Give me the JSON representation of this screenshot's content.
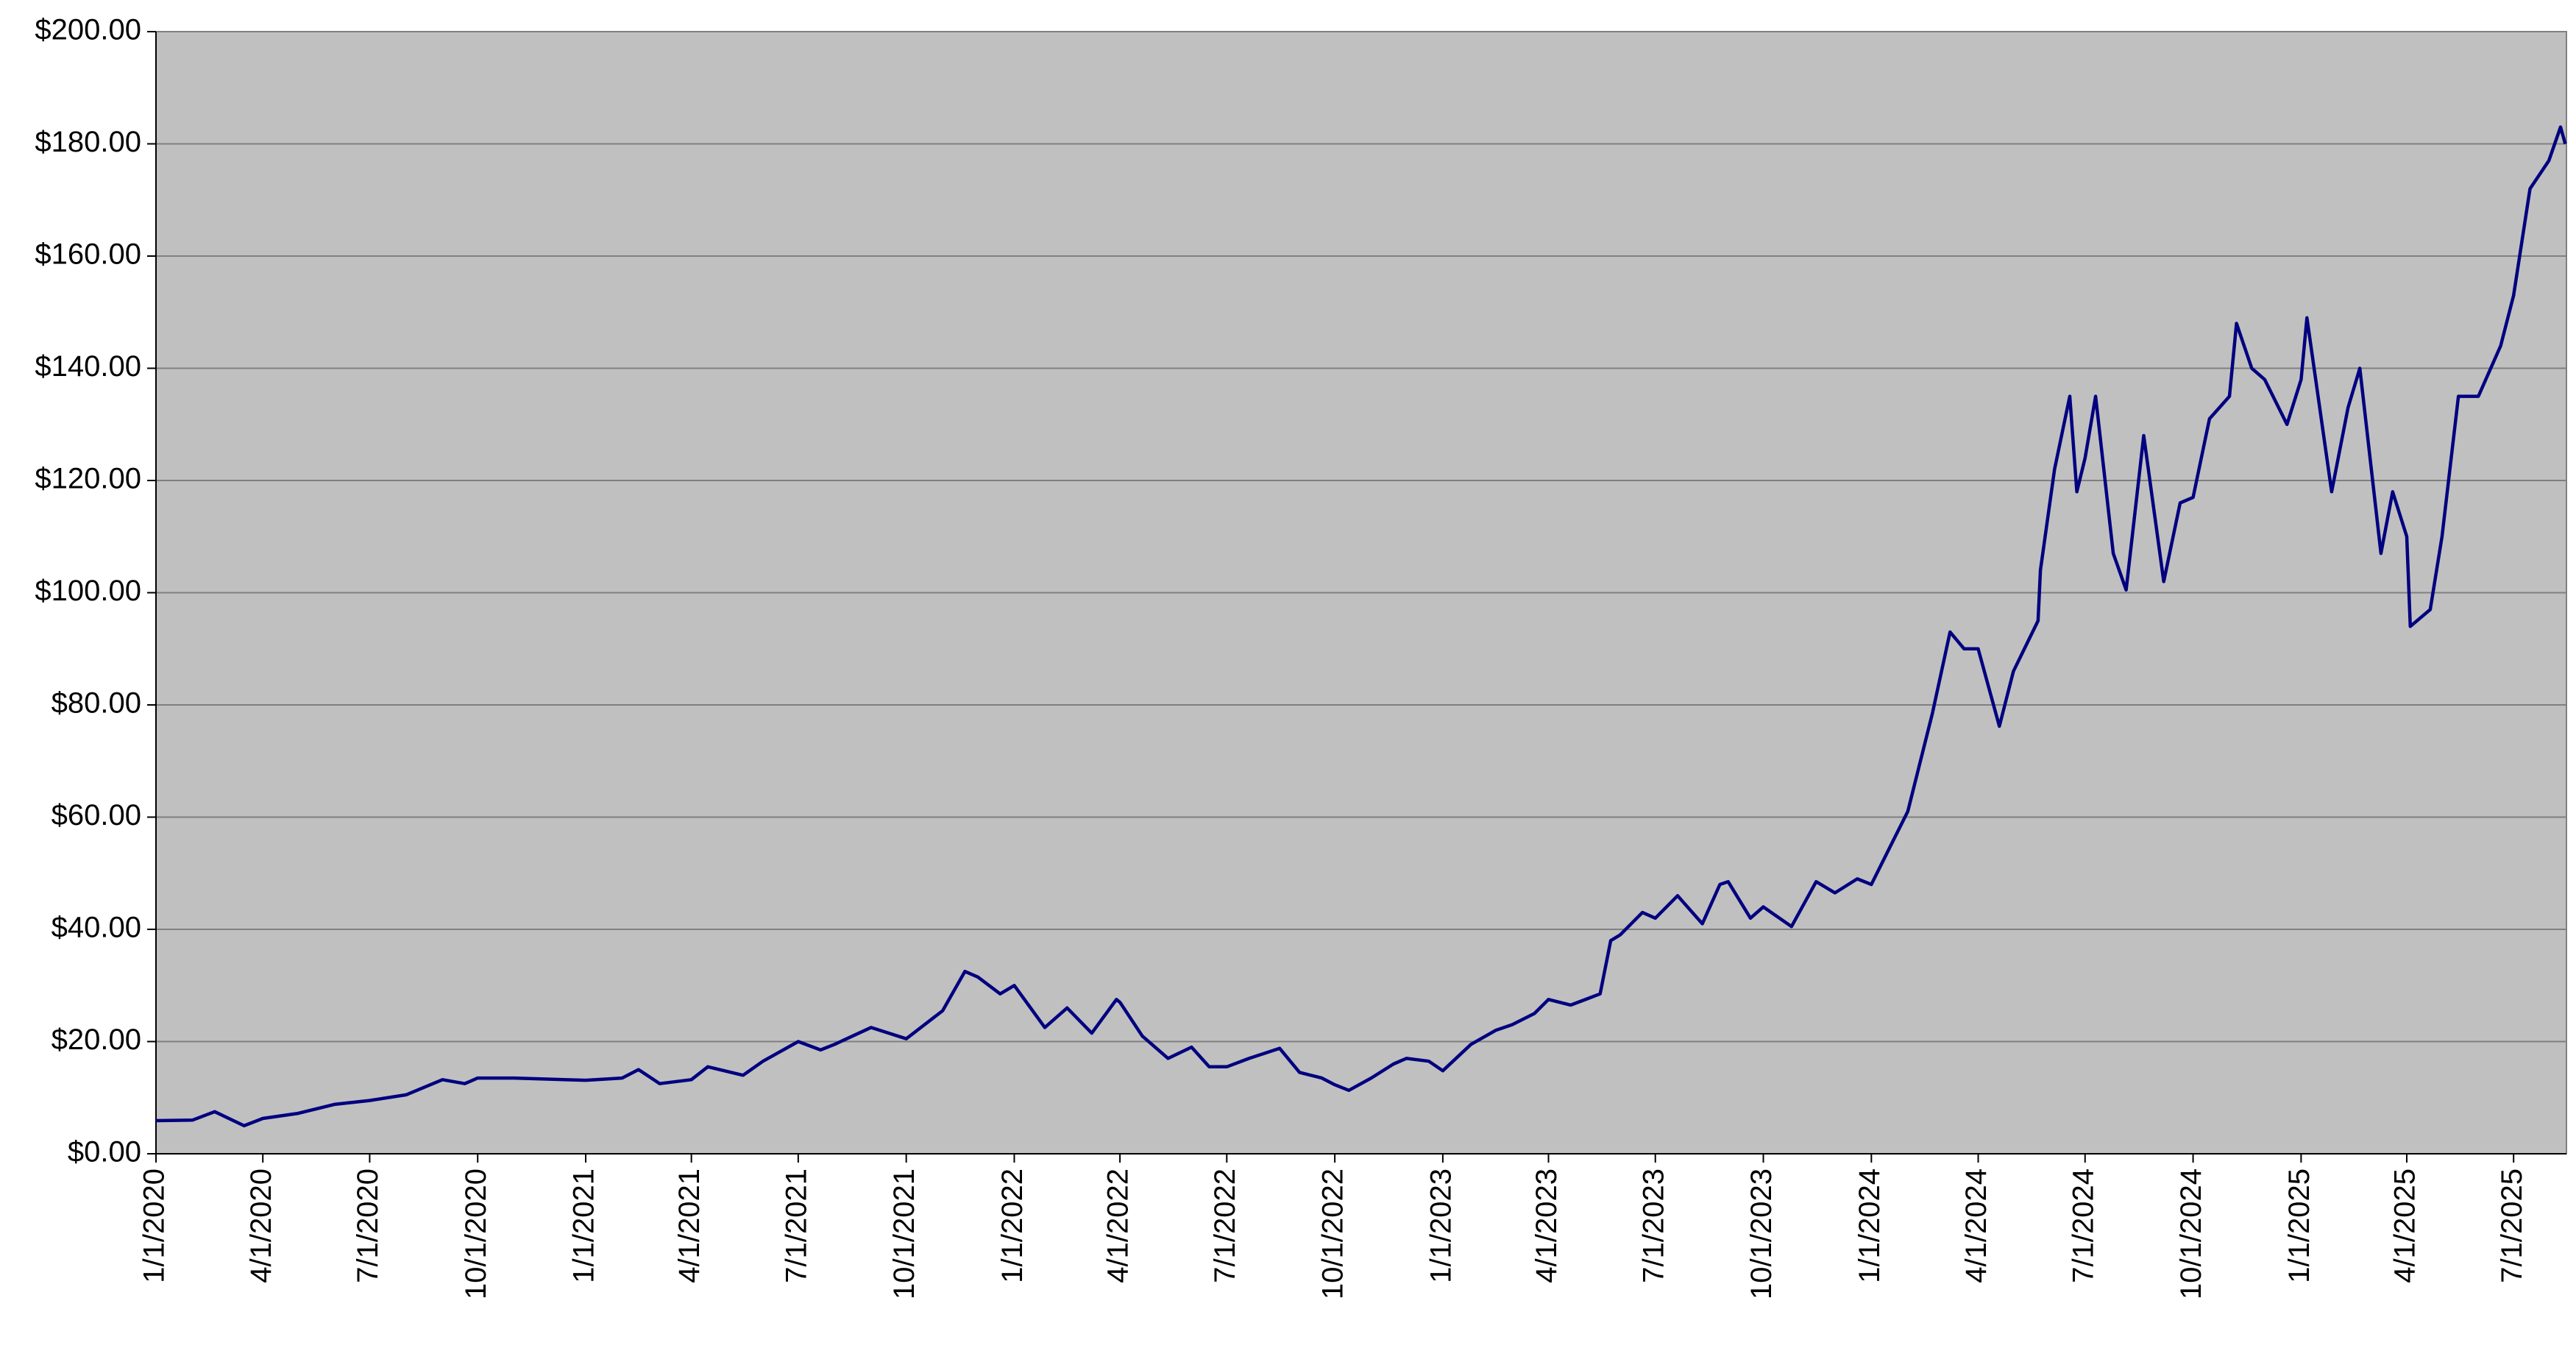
{
  "chart_data": {
    "type": "line",
    "color": "#000080",
    "background": "#c0c0c0",
    "grid": true,
    "xlim": [
      "1/1/2020",
      "8/15/2025"
    ],
    "xticks": [
      "1/1/2020",
      "4/1/2020",
      "7/1/2020",
      "10/1/2020",
      "1/1/2021",
      "4/1/2021",
      "7/1/2021",
      "10/1/2021",
      "1/1/2022",
      "4/1/2022",
      "7/1/2022",
      "10/1/2022",
      "1/1/2023",
      "4/1/2023",
      "7/1/2023",
      "10/1/2023",
      "1/1/2024",
      "4/1/2024",
      "7/1/2024",
      "10/1/2024",
      "1/1/2025",
      "4/1/2025",
      "7/1/2025"
    ],
    "ylim": [
      0,
      200
    ],
    "yticks": [
      {
        "value": 0,
        "label": "$0.00"
      },
      {
        "value": 20,
        "label": "$20.00"
      },
      {
        "value": 40,
        "label": "$40.00"
      },
      {
        "value": 60,
        "label": "$60.00"
      },
      {
        "value": 80,
        "label": "$80.00"
      },
      {
        "value": 100,
        "label": "$100.00"
      },
      {
        "value": 120,
        "label": "$120.00"
      },
      {
        "value": 140,
        "label": "$140.00"
      },
      {
        "value": 160,
        "label": "$160.00"
      },
      {
        "value": 180,
        "label": "$180.00"
      },
      {
        "value": 200,
        "label": "$200.00"
      }
    ],
    "x": [
      "1/1/2020",
      "2/1/2020",
      "2/20/2020",
      "3/16/2020",
      "4/1/2020",
      "5/1/2020",
      "6/1/2020",
      "7/1/2020",
      "8/1/2020",
      "9/1/2020",
      "9/20/2020",
      "10/1/2020",
      "11/1/2020",
      "12/1/2020",
      "1/1/2021",
      "2/1/2021",
      "2/15/2021",
      "3/5/2021",
      "4/1/2021",
      "4/15/2021",
      "5/15/2021",
      "6/1/2021",
      "7/1/2021",
      "7/20/2021",
      "8/1/2021",
      "9/1/2021",
      "10/1/2021",
      "11/1/2021",
      "11/20/2021",
      "12/1/2021",
      "12/20/2021",
      "1/1/2022",
      "1/27/2022",
      "2/15/2022",
      "3/8/2022",
      "3/29/2022",
      "4/1/2022",
      "4/20/2022",
      "5/12/2022",
      "6/1/2022",
      "6/16/2022",
      "7/1/2022",
      "7/20/2022",
      "8/15/2022",
      "9/1/2022",
      "9/20/2022",
      "10/1/2022",
      "10/13/2022",
      "11/1/2022",
      "11/20/2022",
      "12/1/2022",
      "12/20/2022",
      "1/1/2023",
      "1/25/2023",
      "2/15/2023",
      "3/1/2023",
      "3/20/2023",
      "4/1/2023",
      "4/20/2023",
      "5/15/2023",
      "5/24/2023",
      "6/1/2023",
      "6/20/2023",
      "7/1/2023",
      "7/20/2023",
      "8/10/2023",
      "8/25/2023",
      "9/1/2023",
      "9/20/2023",
      "10/1/2023",
      "10/25/2023",
      "11/15/2023",
      "12/1/2023",
      "12/20/2023",
      "1/1/2024",
      "1/20/2024",
      "2/1/2024",
      "2/22/2024",
      "3/8/2024",
      "3/20/2024",
      "4/1/2024",
      "4/19/2024",
      "5/1/2024",
      "5/22/2024",
      "5/24/2024",
      "6/5/2024",
      "6/18/2024",
      "6/24/2024",
      "7/1/2024",
      "7/10/2024",
      "7/25/2024",
      "8/5/2024",
      "8/20/2024",
      "9/6/2024",
      "9/20/2024",
      "10/1/2024",
      "10/15/2024",
      "11/1/2024",
      "11/7/2024",
      "11/20/2024",
      "12/1/2024",
      "12/20/2024",
      "1/1/2025",
      "1/6/2025",
      "1/27/2025",
      "2/10/2025",
      "2/20/2025",
      "3/10/2025",
      "3/20/2025",
      "4/1/2025",
      "4/4/2025",
      "4/21/2025",
      "5/1/2025",
      "5/15/2025",
      "6/1/2025",
      "6/20/2025",
      "7/1/2025",
      "7/15/2025",
      "7/31/2025",
      "8/10/2025",
      "8/14/2025"
    ],
    "values": [
      5.9,
      6.0,
      7.5,
      5.0,
      6.3,
      7.2,
      8.8,
      9.5,
      10.5,
      13.2,
      12.5,
      13.5,
      13.5,
      13.3,
      13.1,
      13.5,
      15.0,
      12.5,
      13.2,
      15.5,
      14.0,
      16.5,
      20.0,
      18.5,
      19.5,
      22.5,
      20.5,
      25.5,
      32.5,
      31.5,
      28.5,
      30.0,
      22.5,
      26.0,
      21.5,
      27.5,
      27.0,
      21.0,
      17.0,
      19.0,
      15.5,
      15.5,
      17.0,
      18.8,
      14.5,
      13.5,
      12.3,
      11.3,
      13.5,
      16.0,
      17.0,
      16.5,
      14.8,
      19.5,
      22.0,
      23.0,
      25.0,
      27.5,
      26.5,
      28.5,
      38.0,
      39.0,
      43.0,
      42.0,
      46.0,
      41.0,
      48.0,
      48.5,
      42.0,
      44.0,
      40.5,
      48.5,
      46.5,
      49.0,
      48.0,
      56.0,
      61.0,
      78.5,
      93.0,
      90.0,
      90.0,
      76.2,
      86.0,
      95.0,
      104.0,
      122.0,
      135.0,
      118.0,
      124.0,
      135.0,
      107.0,
      100.5,
      128.0,
      102.0,
      116.0,
      117.0,
      131.0,
      135.0,
      148.0,
      140.0,
      138.0,
      130.0,
      138.0,
      149.0,
      118.0,
      133.0,
      140.0,
      107.0,
      118.0,
      110.0,
      94.0,
      97.0,
      110.0,
      135.0,
      135.0,
      144.0,
      153.0,
      172.0,
      177.0,
      183.0,
      180.0
    ]
  }
}
